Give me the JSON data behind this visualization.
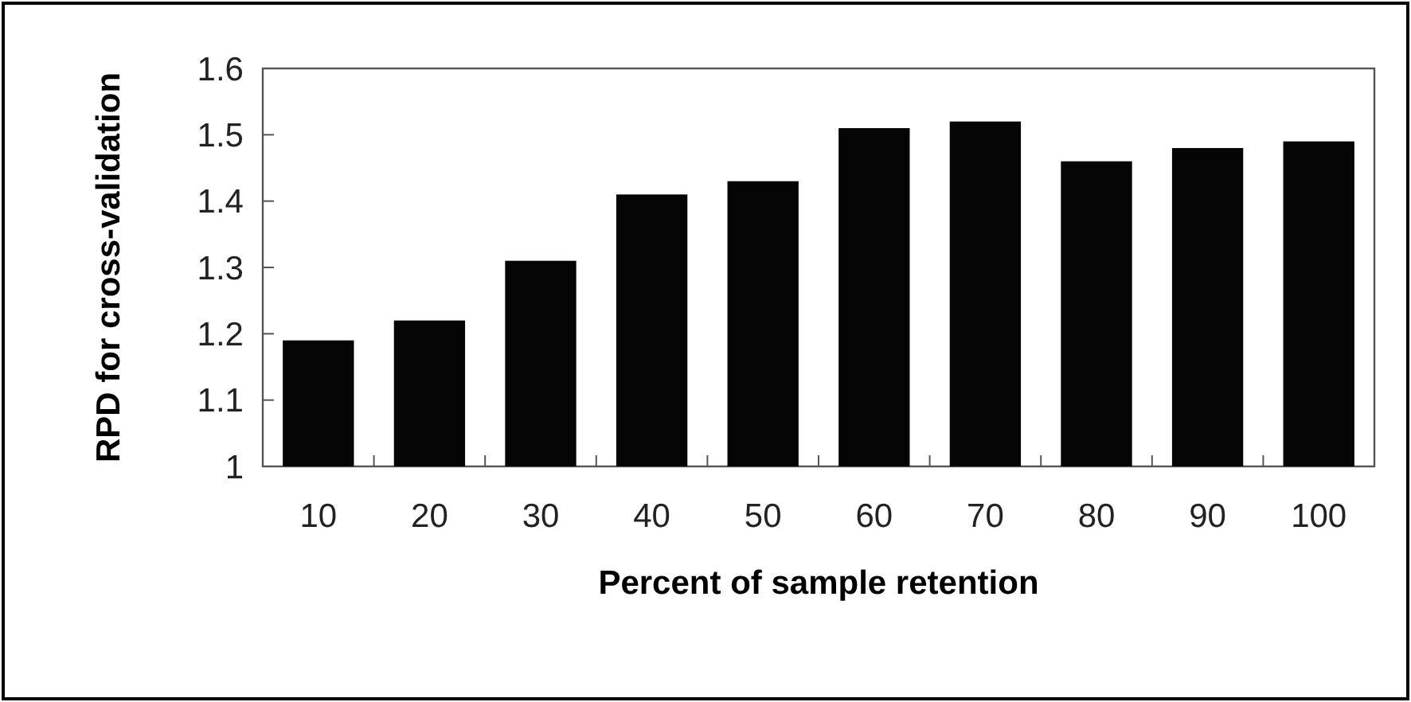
{
  "chart_data": {
    "type": "bar",
    "xlabel": "Percent of sample retention",
    "ylabel": "RPD for cross-validation",
    "categories": [
      "10",
      "20",
      "30",
      "40",
      "50",
      "60",
      "70",
      "80",
      "90",
      "100"
    ],
    "values": [
      1.19,
      1.22,
      1.31,
      1.41,
      1.43,
      1.51,
      1.52,
      1.46,
      1.48,
      1.49
    ],
    "color": "#050505",
    "ylim": [
      1,
      1.6
    ],
    "yticks": [
      1,
      1.1,
      1.2,
      1.3,
      1.4,
      1.5,
      1.6
    ],
    "grid": false
  }
}
